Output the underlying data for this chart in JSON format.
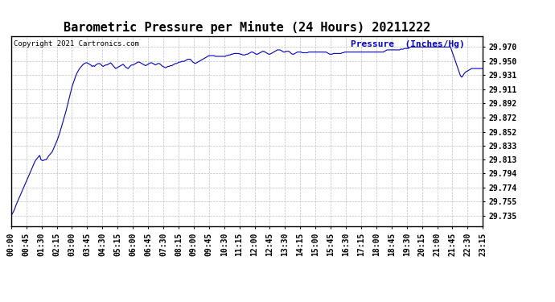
{
  "title": "Barometric Pressure per Minute (24 Hours) 20211222",
  "copyright_text": "Copyright 2021 Cartronics.com",
  "legend_text": "Pressure  (Inches/Hg)",
  "line_color": "#0000cc",
  "background_color": "#ffffff",
  "grid_color": "#c0c0c0",
  "yticks": [
    29.735,
    29.755,
    29.774,
    29.794,
    29.813,
    29.833,
    29.852,
    29.872,
    29.892,
    29.911,
    29.931,
    29.95,
    29.97
  ],
  "xtick_labels": [
    "00:00",
    "00:45",
    "01:30",
    "02:15",
    "03:00",
    "03:45",
    "04:30",
    "05:15",
    "06:00",
    "06:45",
    "07:30",
    "08:15",
    "09:00",
    "09:45",
    "10:30",
    "11:15",
    "12:00",
    "12:45",
    "13:30",
    "14:15",
    "15:00",
    "15:45",
    "16:30",
    "17:15",
    "18:00",
    "18:45",
    "19:30",
    "20:15",
    "21:00",
    "21:45",
    "22:30",
    "23:15"
  ],
  "ylim": [
    29.72,
    29.985
  ],
  "title_fontsize": 11,
  "axis_fontsize": 7,
  "copyright_fontsize": 6.5,
  "legend_fontsize": 8,
  "pressure_data": [
    29.735,
    29.738,
    29.741,
    29.745,
    29.75,
    29.754,
    29.758,
    29.762,
    29.766,
    29.77,
    29.774,
    29.778,
    29.782,
    29.786,
    29.79,
    29.794,
    29.798,
    29.802,
    29.806,
    29.81,
    29.813,
    29.815,
    29.817,
    29.819,
    29.813,
    29.812,
    29.812,
    29.813,
    29.813,
    29.815,
    29.818,
    29.82,
    29.822,
    29.824,
    29.828,
    29.832,
    29.836,
    29.84,
    29.845,
    29.85,
    29.856,
    29.862,
    29.868,
    29.874,
    29.88,
    29.887,
    29.894,
    29.901,
    29.908,
    29.915,
    29.92,
    29.925,
    29.93,
    29.934,
    29.937,
    29.94,
    29.942,
    29.944,
    29.946,
    29.947,
    29.948,
    29.948,
    29.947,
    29.946,
    29.945,
    29.943,
    29.944,
    29.943,
    29.945,
    29.946,
    29.947,
    29.947,
    29.946,
    29.944,
    29.943,
    29.944,
    29.945,
    29.945,
    29.946,
    29.947,
    29.948,
    29.946,
    29.944,
    29.942,
    29.94,
    29.941,
    29.942,
    29.943,
    29.944,
    29.945,
    29.946,
    29.944,
    29.942,
    29.941,
    29.94,
    29.942,
    29.944,
    29.945,
    29.945,
    29.946,
    29.947,
    29.948,
    29.949,
    29.949,
    29.948,
    29.947,
    29.946,
    29.945,
    29.944,
    29.945,
    29.946,
    29.947,
    29.948,
    29.948,
    29.947,
    29.946,
    29.945,
    29.946,
    29.947,
    29.947,
    29.946,
    29.944,
    29.943,
    29.942,
    29.941,
    29.942,
    29.943,
    29.943,
    29.944,
    29.944,
    29.945,
    29.946,
    29.947,
    29.947,
    29.948,
    29.949,
    29.949,
    29.95,
    29.95,
    29.95,
    29.951,
    29.952,
    29.953,
    29.953,
    29.953,
    29.951,
    29.949,
    29.948,
    29.947,
    29.948,
    29.949,
    29.95,
    29.951,
    29.952,
    29.953,
    29.954,
    29.955,
    29.956,
    29.957,
    29.958,
    29.958,
    29.958,
    29.958,
    29.958,
    29.957,
    29.957,
    29.957,
    29.957,
    29.957,
    29.957,
    29.957,
    29.957,
    29.957,
    29.958,
    29.958,
    29.959,
    29.959,
    29.96,
    29.96,
    29.961,
    29.961,
    29.961,
    29.961,
    29.961,
    29.96,
    29.96,
    29.959,
    29.959,
    29.959,
    29.96,
    29.96,
    29.961,
    29.962,
    29.963,
    29.963,
    29.962,
    29.961,
    29.96,
    29.96,
    29.961,
    29.962,
    29.963,
    29.964,
    29.964,
    29.963,
    29.962,
    29.961,
    29.96,
    29.96,
    29.961,
    29.962,
    29.963,
    29.964,
    29.965,
    29.966,
    29.966,
    29.966,
    29.965,
    29.964,
    29.963,
    29.963,
    29.964,
    29.964,
    29.964,
    29.963,
    29.961,
    29.96,
    29.96,
    29.961,
    29.962,
    29.963,
    29.963,
    29.963,
    29.963,
    29.962,
    29.962,
    29.962,
    29.962,
    29.962,
    29.963,
    29.963,
    29.963,
    29.963,
    29.963,
    29.963,
    29.963,
    29.963,
    29.963,
    29.963,
    29.963,
    29.963,
    29.963,
    29.963,
    29.963,
    29.962,
    29.961,
    29.96,
    29.96,
    29.96,
    29.961,
    29.961,
    29.961,
    29.961,
    29.961,
    29.961,
    29.961,
    29.962,
    29.962,
    29.963,
    29.963,
    29.963,
    29.963,
    29.963,
    29.963,
    29.963,
    29.963,
    29.963,
    29.963,
    29.963,
    29.963,
    29.963,
    29.963,
    29.963,
    29.963,
    29.963,
    29.963,
    29.963,
    29.963,
    29.963,
    29.963,
    29.963,
    29.963,
    29.963,
    29.963,
    29.963,
    29.963,
    29.963,
    29.963,
    29.963,
    29.963,
    29.964,
    29.965,
    29.966,
    29.966,
    29.966,
    29.966,
    29.966,
    29.966,
    29.966,
    29.966,
    29.966,
    29.966,
    29.966,
    29.967,
    29.967,
    29.967,
    29.968,
    29.968,
    29.968,
    29.968,
    29.969,
    29.97,
    29.97,
    29.97,
    29.97,
    29.97,
    29.97,
    29.97,
    29.97,
    29.97,
    29.97,
    29.97,
    29.97,
    29.97,
    29.97,
    29.97,
    29.97,
    29.97,
    29.97,
    29.97,
    29.97,
    29.97,
    29.97,
    29.97,
    29.97,
    29.97,
    29.97,
    29.97,
    29.97,
    29.97,
    29.97,
    29.97,
    29.97,
    29.97,
    29.965,
    29.96,
    29.955,
    29.95,
    29.945,
    29.94,
    29.935,
    29.93,
    29.928,
    29.93,
    29.933,
    29.935,
    29.936,
    29.937,
    29.938,
    29.939,
    29.94,
    29.94,
    29.94,
    29.94,
    29.94,
    29.94,
    29.94,
    29.94,
    29.94,
    29.94
  ]
}
